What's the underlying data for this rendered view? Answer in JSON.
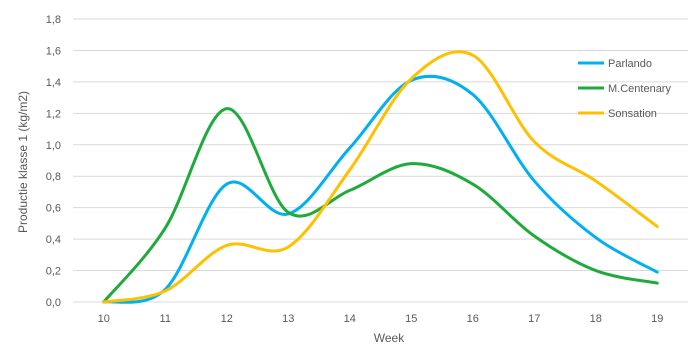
{
  "chart_data": {
    "type": "line",
    "xlabel": "Week",
    "ylabel": "Productie klasse 1 (kg/m2)",
    "x": [
      10,
      11,
      12,
      13,
      14,
      15,
      16,
      17,
      18,
      19
    ],
    "xlim": [
      9.5,
      19.5
    ],
    "ylim": [
      0,
      1.8
    ],
    "y_ticks": [
      "0,0",
      "0,2",
      "0,4",
      "0,6",
      "0,8",
      "1,0",
      "1,2",
      "1,4",
      "1,6",
      "1,8"
    ],
    "x_ticks": [
      "10",
      "11",
      "12",
      "13",
      "14",
      "15",
      "16",
      "17",
      "18",
      "19"
    ],
    "grid": true,
    "legend_position": "right",
    "series": [
      {
        "name": "Parlando",
        "color": "#00b0f0",
        "values": [
          0.0,
          0.08,
          0.75,
          0.56,
          0.98,
          1.41,
          1.32,
          0.77,
          0.41,
          0.19
        ]
      },
      {
        "name": "M.Centenary",
        "color": "#1faa3c",
        "values": [
          0.0,
          0.47,
          1.23,
          0.57,
          0.71,
          0.88,
          0.75,
          0.42,
          0.2,
          0.12
        ]
      },
      {
        "name": "Sonsation",
        "color": "#ffc000",
        "values": [
          0.0,
          0.07,
          0.36,
          0.35,
          0.84,
          1.42,
          1.57,
          1.02,
          0.77,
          0.48
        ]
      }
    ]
  }
}
